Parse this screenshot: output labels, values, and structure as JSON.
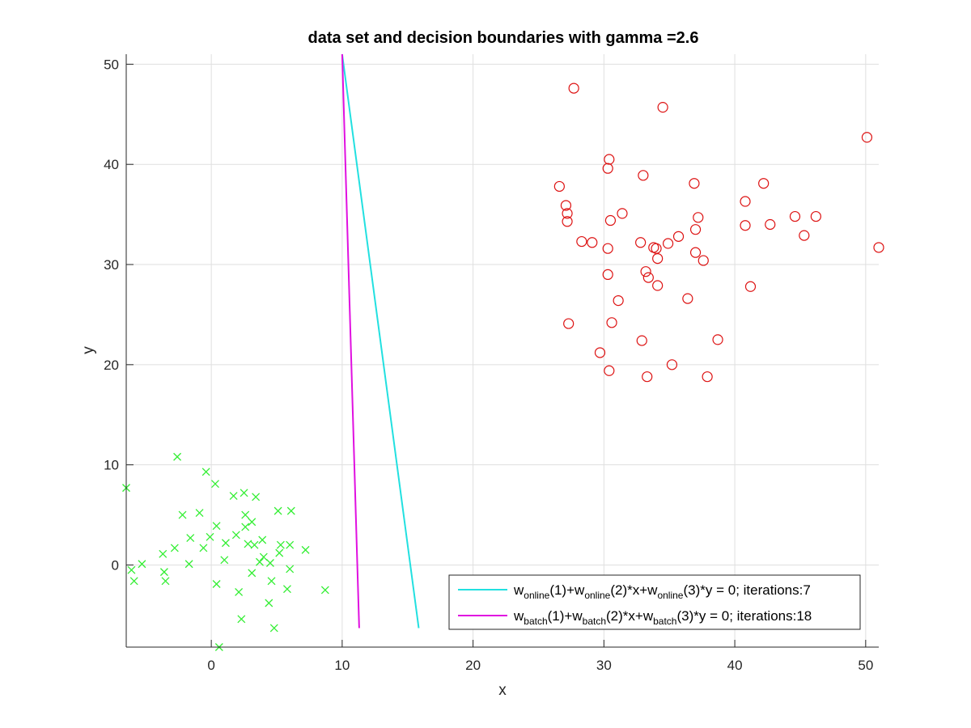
{
  "chart_data": {
    "type": "scatter",
    "title": "data set and decision boundaries with gamma =2.6",
    "xlabel": "x",
    "ylabel": "y",
    "xlim": [
      -6.5,
      51
    ],
    "ylim": [
      -8.2,
      51
    ],
    "xticks": [
      0,
      10,
      20,
      30,
      40,
      50
    ],
    "yticks": [
      0,
      10,
      20,
      30,
      40,
      50
    ],
    "grid": true,
    "legend_position": "bottom-right",
    "colors": {
      "class_neg": "#33ee33",
      "class_pos": "#dd1111",
      "online": "#22e0e0",
      "batch": "#e010e0"
    },
    "series": [
      {
        "marker": "x",
        "points": [
          [
            -6.5,
            7.7
          ],
          [
            -6.1,
            -0.5
          ],
          [
            -5.9,
            -1.6
          ],
          [
            -5.3,
            0.1
          ],
          [
            -3.7,
            1.1
          ],
          [
            -3.6,
            -0.7
          ],
          [
            -3.5,
            -1.6
          ],
          [
            -2.8,
            1.7
          ],
          [
            -2.6,
            10.8
          ],
          [
            -2.2,
            5.0
          ],
          [
            -1.7,
            0.1
          ],
          [
            -1.6,
            2.7
          ],
          [
            -0.9,
            5.2
          ],
          [
            -0.6,
            1.7
          ],
          [
            -0.4,
            9.3
          ],
          [
            -0.1,
            2.8
          ],
          [
            0.3,
            8.1
          ],
          [
            0.4,
            3.9
          ],
          [
            0.4,
            -1.9
          ],
          [
            0.6,
            -8.2
          ],
          [
            1.0,
            0.5
          ],
          [
            1.1,
            2.2
          ],
          [
            1.7,
            6.9
          ],
          [
            1.9,
            3.0
          ],
          [
            2.1,
            -2.7
          ],
          [
            2.3,
            -5.4
          ],
          [
            2.5,
            7.2
          ],
          [
            2.6,
            3.8
          ],
          [
            2.6,
            5.0
          ],
          [
            2.8,
            2.1
          ],
          [
            3.1,
            4.3
          ],
          [
            3.1,
            -0.8
          ],
          [
            3.3,
            2.0
          ],
          [
            3.4,
            6.8
          ],
          [
            3.7,
            0.3
          ],
          [
            3.9,
            2.5
          ],
          [
            4.0,
            0.8
          ],
          [
            4.4,
            -3.8
          ],
          [
            4.5,
            0.2
          ],
          [
            4.6,
            -1.6
          ],
          [
            4.8,
            -6.3
          ],
          [
            5.1,
            5.4
          ],
          [
            5.2,
            1.2
          ],
          [
            5.3,
            2.0
          ],
          [
            5.8,
            -2.4
          ],
          [
            6.0,
            2.0
          ],
          [
            6.0,
            -0.4
          ],
          [
            6.1,
            5.4
          ],
          [
            7.2,
            1.5
          ],
          [
            8.7,
            -2.5
          ]
        ]
      },
      {
        "marker": "o",
        "points": [
          [
            26.6,
            37.8
          ],
          [
            27.1,
            35.9
          ],
          [
            27.2,
            35.1
          ],
          [
            27.2,
            34.3
          ],
          [
            27.3,
            24.1
          ],
          [
            27.7,
            47.6
          ],
          [
            28.3,
            32.3
          ],
          [
            29.1,
            32.2
          ],
          [
            29.7,
            21.2
          ],
          [
            30.3,
            31.6
          ],
          [
            30.3,
            29.0
          ],
          [
            30.4,
            40.5
          ],
          [
            30.3,
            39.6
          ],
          [
            30.4,
            19.4
          ],
          [
            30.5,
            34.4
          ],
          [
            30.6,
            24.2
          ],
          [
            31.1,
            26.4
          ],
          [
            31.4,
            35.1
          ],
          [
            32.8,
            32.2
          ],
          [
            32.9,
            22.4
          ],
          [
            33.0,
            38.9
          ],
          [
            33.2,
            29.3
          ],
          [
            33.4,
            28.7
          ],
          [
            33.3,
            18.8
          ],
          [
            33.8,
            31.7
          ],
          [
            34.0,
            31.6
          ],
          [
            34.1,
            30.6
          ],
          [
            34.1,
            27.9
          ],
          [
            34.5,
            45.7
          ],
          [
            34.9,
            32.1
          ],
          [
            35.2,
            20.0
          ],
          [
            35.7,
            32.8
          ],
          [
            36.4,
            26.6
          ],
          [
            36.9,
            38.1
          ],
          [
            37.0,
            31.2
          ],
          [
            37.0,
            33.5
          ],
          [
            37.2,
            34.7
          ],
          [
            37.6,
            30.4
          ],
          [
            37.9,
            18.8
          ],
          [
            38.7,
            22.5
          ],
          [
            40.8,
            33.9
          ],
          [
            40.8,
            36.3
          ],
          [
            41.2,
            27.8
          ],
          [
            42.2,
            38.1
          ],
          [
            42.7,
            34.0
          ],
          [
            44.6,
            34.8
          ],
          [
            45.3,
            32.9
          ],
          [
            46.2,
            34.8
          ],
          [
            50.1,
            42.7
          ],
          [
            51.0,
            31.7
          ]
        ]
      },
      {
        "name_prefix": "w",
        "name_sub": "online",
        "name_template": [
          "(1)+",
          "(2)*x+",
          "(3)*y = 0; iterations:7"
        ],
        "line": [
          [
            10.0,
            51.0
          ],
          [
            15.85,
            -6.3
          ]
        ]
      },
      {
        "name_prefix": "w",
        "name_sub": "batch",
        "name_template": [
          "(1)+",
          "(2)*x+",
          "(3)*y = 0; iterations:18"
        ],
        "line": [
          [
            10.0,
            51.0
          ],
          [
            11.3,
            -6.3
          ]
        ]
      }
    ]
  }
}
